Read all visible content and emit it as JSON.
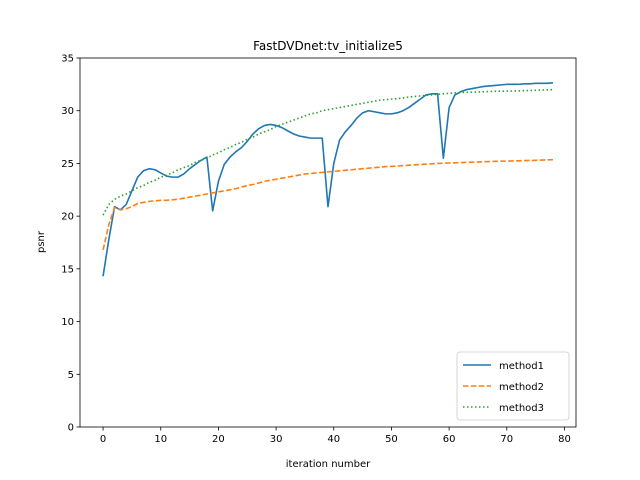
{
  "chart_data": {
    "type": "line",
    "title": "FastDVDnet:tv_initialize5",
    "xlabel": "iteration number",
    "ylabel": "psnr",
    "xlim": [
      -4,
      82
    ],
    "ylim": [
      0,
      35
    ],
    "xticks": [
      0,
      10,
      20,
      30,
      40,
      50,
      60,
      70,
      80
    ],
    "yticks": [
      0,
      5,
      10,
      15,
      20,
      25,
      30,
      35
    ],
    "grid": false,
    "legend_position": "lower-right",
    "series": [
      {
        "name": "method1",
        "color": "#1f77b4",
        "style": "solid",
        "x": [
          0,
          1,
          2,
          3,
          4,
          5,
          6,
          7,
          8,
          9,
          10,
          11,
          12,
          13,
          14,
          15,
          16,
          17,
          18,
          19,
          20,
          21,
          22,
          23,
          24,
          25,
          26,
          27,
          28,
          29,
          30,
          31,
          32,
          33,
          34,
          35,
          36,
          37,
          38,
          39,
          40,
          41,
          42,
          43,
          44,
          45,
          46,
          47,
          48,
          49,
          50,
          51,
          52,
          53,
          54,
          55,
          56,
          57,
          58,
          59,
          60,
          61,
          62,
          63,
          64,
          65,
          66,
          67,
          68,
          69,
          70,
          71,
          72,
          73,
          74,
          75,
          76,
          77,
          78
        ],
        "y": [
          14.3,
          17.8,
          20.9,
          20.6,
          21.1,
          22.4,
          23.7,
          24.3,
          24.5,
          24.4,
          24.1,
          23.8,
          23.7,
          23.7,
          24.0,
          24.5,
          24.9,
          25.3,
          25.6,
          20.5,
          23.3,
          24.9,
          25.6,
          26.1,
          26.5,
          27.1,
          27.8,
          28.3,
          28.6,
          28.7,
          28.6,
          28.4,
          28.1,
          27.8,
          27.6,
          27.5,
          27.4,
          27.4,
          27.4,
          20.9,
          25.0,
          27.2,
          28.0,
          28.6,
          29.3,
          29.8,
          30.0,
          29.9,
          29.8,
          29.7,
          29.7,
          29.8,
          30.0,
          30.3,
          30.7,
          31.1,
          31.5,
          31.6,
          31.6,
          25.5,
          30.3,
          31.5,
          31.8,
          32.0,
          32.1,
          32.2,
          32.3,
          32.35,
          32.4,
          32.45,
          32.5,
          32.5,
          32.5,
          32.55,
          32.55,
          32.6,
          32.6,
          32.6,
          32.65
        ]
      },
      {
        "name": "method2",
        "color": "#ff7f0e",
        "style": "dashed",
        "x": [
          0,
          1,
          2,
          3,
          4,
          5,
          6,
          7,
          8,
          9,
          10,
          11,
          12,
          13,
          14,
          15,
          16,
          17,
          18,
          19,
          20,
          21,
          22,
          23,
          24,
          25,
          26,
          27,
          28,
          29,
          30,
          31,
          32,
          33,
          34,
          35,
          36,
          37,
          38,
          39,
          40,
          41,
          42,
          43,
          44,
          45,
          46,
          47,
          48,
          49,
          50,
          51,
          52,
          53,
          54,
          55,
          56,
          57,
          58,
          59,
          60,
          61,
          62,
          63,
          64,
          65,
          66,
          67,
          68,
          69,
          70,
          71,
          72,
          73,
          74,
          75,
          76,
          77,
          78
        ],
        "y": [
          16.8,
          19.2,
          20.8,
          20.6,
          20.7,
          20.9,
          21.2,
          21.3,
          21.4,
          21.45,
          21.5,
          21.5,
          21.55,
          21.6,
          21.7,
          21.8,
          21.9,
          22.0,
          22.1,
          22.2,
          22.3,
          22.4,
          22.5,
          22.6,
          22.75,
          22.9,
          23.0,
          23.15,
          23.3,
          23.4,
          23.5,
          23.6,
          23.7,
          23.8,
          23.9,
          24.0,
          24.05,
          24.1,
          24.15,
          24.2,
          24.25,
          24.3,
          24.35,
          24.4,
          24.45,
          24.5,
          24.55,
          24.6,
          24.65,
          24.7,
          24.72,
          24.75,
          24.8,
          24.83,
          24.86,
          24.9,
          24.93,
          24.96,
          25.0,
          25.02,
          25.04,
          25.06,
          25.08,
          25.1,
          25.12,
          25.14,
          25.16,
          25.18,
          25.2,
          25.21,
          25.22,
          25.24,
          25.25,
          25.27,
          25.28,
          25.3,
          25.32,
          25.34,
          25.35
        ]
      },
      {
        "name": "method3",
        "color": "#2ca02c",
        "style": "dotted",
        "x": [
          0,
          1,
          2,
          3,
          4,
          5,
          6,
          7,
          8,
          9,
          10,
          11,
          12,
          13,
          14,
          15,
          16,
          17,
          18,
          19,
          20,
          21,
          22,
          23,
          24,
          25,
          26,
          27,
          28,
          29,
          30,
          31,
          32,
          33,
          34,
          35,
          36,
          37,
          38,
          39,
          40,
          41,
          42,
          43,
          44,
          45,
          46,
          47,
          48,
          49,
          50,
          51,
          52,
          53,
          54,
          55,
          56,
          57,
          58,
          59,
          60,
          61,
          62,
          63,
          64,
          65,
          66,
          67,
          68,
          69,
          70,
          71,
          72,
          73,
          74,
          75,
          76,
          77,
          78
        ],
        "y": [
          20.1,
          21.1,
          21.6,
          21.9,
          22.1,
          22.4,
          22.7,
          22.9,
          23.2,
          23.4,
          23.7,
          23.9,
          24.1,
          24.4,
          24.6,
          24.8,
          25.1,
          25.3,
          25.5,
          25.8,
          26.0,
          26.3,
          26.5,
          26.8,
          27.0,
          27.3,
          27.5,
          27.8,
          28.0,
          28.2,
          28.5,
          28.7,
          28.9,
          29.1,
          29.3,
          29.5,
          29.7,
          29.8,
          30.0,
          30.1,
          30.2,
          30.3,
          30.4,
          30.5,
          30.6,
          30.7,
          30.8,
          30.9,
          31.0,
          31.05,
          31.1,
          31.15,
          31.2,
          31.3,
          31.35,
          31.4,
          31.45,
          31.5,
          31.55,
          31.6,
          31.65,
          31.7,
          31.72,
          31.74,
          31.76,
          31.78,
          31.8,
          31.82,
          31.84,
          31.85,
          31.86,
          31.87,
          31.88,
          31.9,
          31.92,
          31.94,
          31.96,
          31.98,
          32.0
        ]
      }
    ]
  }
}
